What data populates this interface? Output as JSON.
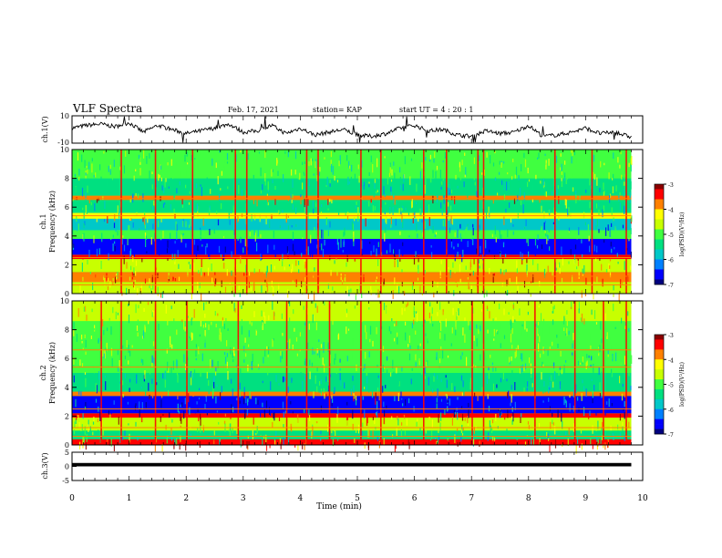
{
  "header": {
    "title": "VLF Spectra",
    "date": "Feb. 17, 2021",
    "station": "station= KAP",
    "start": "start  UT =   4 : 20 : 1"
  },
  "colors": {
    "axis": "#000000",
    "trace": "#000000",
    "colormap": [
      "#000080",
      "#0000ff",
      "#0080ff",
      "#00c8c8",
      "#00e080",
      "#40ff40",
      "#c8ff00",
      "#ffff00",
      "#ff8000",
      "#ff0000",
      "#8b0000"
    ]
  },
  "chart_data": [
    {
      "id": "ch1-waveform",
      "type": "line",
      "ylabel": "ch.1(V)",
      "ylim": [
        -10,
        10
      ],
      "yticks": [
        "10",
        "-10"
      ],
      "xlim": [
        0,
        10
      ],
      "x": [
        0,
        0.25,
        0.5,
        0.75,
        1.0,
        1.25,
        1.5,
        1.75,
        2.0,
        2.25,
        2.5,
        2.75,
        3.0,
        3.25,
        3.5,
        3.75,
        4.0,
        4.25,
        4.5,
        4.75,
        5.0,
        5.25,
        5.5,
        5.75,
        6.0,
        6.25,
        6.5,
        6.75,
        7.0,
        7.25,
        7.5,
        7.75,
        8.0,
        8.25,
        8.5,
        8.75,
        9.0,
        9.25,
        9.5,
        9.75
      ],
      "values": [
        1,
        3,
        4,
        2,
        5,
        -2,
        3,
        0,
        -3,
        -1,
        1,
        4,
        -2,
        -1,
        3,
        -3,
        1,
        -4,
        -2,
        0,
        -4,
        -5,
        -3,
        1,
        3,
        -1,
        0,
        -4,
        -5,
        -1,
        -3,
        -2,
        3,
        -5,
        -4,
        -2,
        1,
        -3,
        -2,
        -5
      ]
    },
    {
      "id": "ch1-spectrogram",
      "type": "heatmap",
      "ylabel": "ch.1\nFrequency (kHz)",
      "ylim": [
        0,
        10
      ],
      "yticks": [
        "0",
        "2",
        "4",
        "6",
        "8",
        "10"
      ],
      "xlim": [
        0,
        10
      ],
      "colorbar": {
        "label": "log(PSD)(V²/Hz)",
        "range": [
          -7,
          -3
        ],
        "ticks": [
          "-3",
          "-4",
          "-5",
          "-6",
          "-7"
        ]
      },
      "bands": [
        {
          "from": 0,
          "to": 0.8,
          "level": -4.5
        },
        {
          "from": 0.8,
          "to": 1.5,
          "level": -3.8
        },
        {
          "from": 1.5,
          "to": 2.4,
          "level": -4.7
        },
        {
          "from": 2.4,
          "to": 2.7,
          "level": -3.3
        },
        {
          "from": 2.7,
          "to": 3.8,
          "level": -6.4
        },
        {
          "from": 3.8,
          "to": 4.4,
          "level": -5.0
        },
        {
          "from": 4.4,
          "to": 5.2,
          "level": -5.7
        },
        {
          "from": 5.2,
          "to": 5.6,
          "level": -4.3
        },
        {
          "from": 5.6,
          "to": 6.5,
          "level": -5.3
        },
        {
          "from": 6.5,
          "to": 6.8,
          "level": -3.8
        },
        {
          "from": 6.8,
          "to": 8.0,
          "level": -5.4
        },
        {
          "from": 8.0,
          "to": 10,
          "level": -5.0
        }
      ],
      "spikes_min": [
        0.85,
        1.45,
        2.1,
        2.85,
        3.05,
        4.1,
        4.3,
        5.05,
        5.4,
        6.15,
        6.55,
        7.1,
        7.2,
        8.45,
        9.1,
        9.7
      ]
    },
    {
      "id": "ch2-spectrogram",
      "type": "heatmap",
      "ylabel": "ch.2\nFrequency (kHz)",
      "ylim": [
        0,
        10
      ],
      "yticks": [
        "0",
        "2",
        "4",
        "6",
        "8",
        "10"
      ],
      "xlim": [
        0,
        10
      ],
      "colorbar": {
        "label": "log(PSD)(V²/Hz)",
        "range": [
          -7,
          -3
        ],
        "ticks": [
          "-3",
          "-4",
          "-5",
          "-6",
          "-7"
        ]
      },
      "bands": [
        {
          "from": 0,
          "to": 0.4,
          "level": -3.5
        },
        {
          "from": 0.4,
          "to": 1.0,
          "level": -5.3
        },
        {
          "from": 1.0,
          "to": 1.9,
          "level": -4.6
        },
        {
          "from": 1.9,
          "to": 2.2,
          "level": -3.6
        },
        {
          "from": 2.2,
          "to": 3.4,
          "level": -6.4
        },
        {
          "from": 3.4,
          "to": 3.7,
          "level": -3.9
        },
        {
          "from": 3.7,
          "to": 5.0,
          "level": -5.6
        },
        {
          "from": 5.0,
          "to": 6.6,
          "level": -5.2
        },
        {
          "from": 6.6,
          "to": 8.6,
          "level": -4.9
        },
        {
          "from": 8.6,
          "to": 10,
          "level": -4.6
        }
      ],
      "spikes_min": [
        0.5,
        0.85,
        1.45,
        2.0,
        2.9,
        3.75,
        4.1,
        4.5,
        5.05,
        5.4,
        6.15,
        7.0,
        7.2,
        8.1,
        8.8,
        9.3,
        9.7
      ]
    },
    {
      "id": "ch3-waveform",
      "type": "line",
      "ylabel": "ch.3(V)",
      "ylim": [
        -5,
        5
      ],
      "yticks": [
        "5",
        "0",
        "-5"
      ],
      "xlim": [
        0,
        10
      ],
      "xlabel": "Time  (min)",
      "xticks": [
        "0",
        "1",
        "2",
        "3",
        "4",
        "5",
        "6",
        "7",
        "8",
        "9",
        "10"
      ],
      "x": [
        0,
        9.8
      ],
      "values": [
        0.6,
        0.6
      ],
      "band": [
        0.0,
        1.2
      ]
    }
  ]
}
